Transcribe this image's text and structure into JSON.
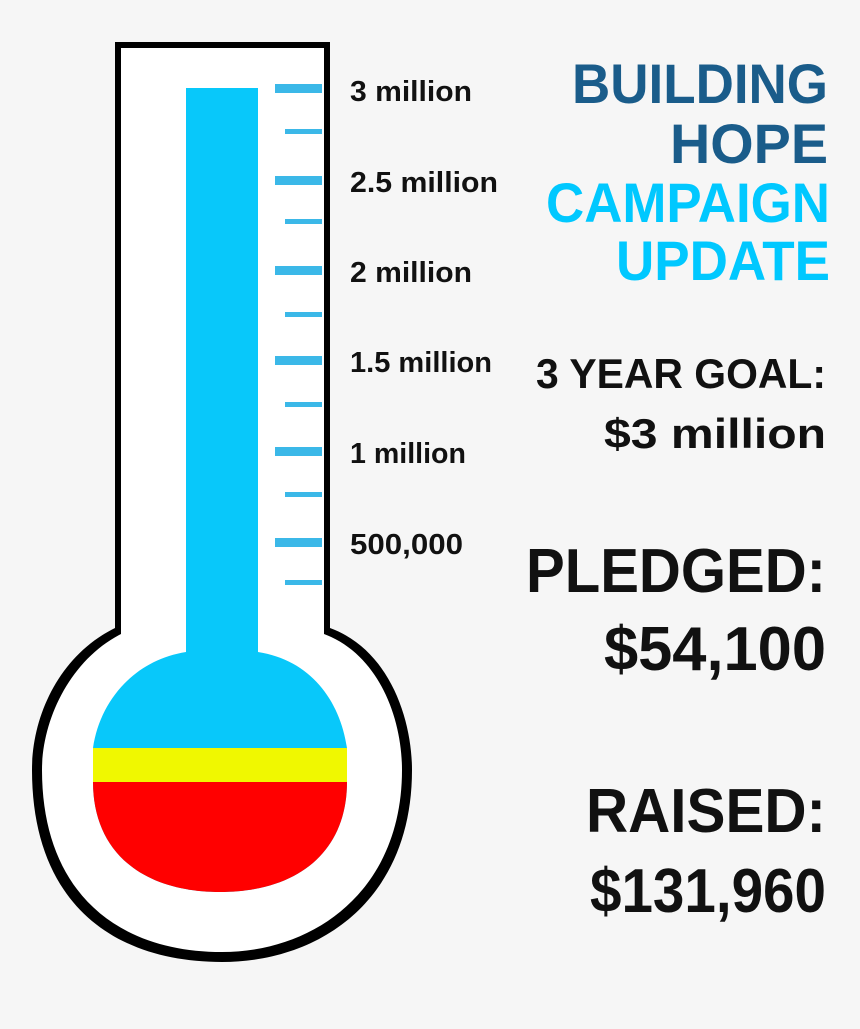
{
  "title": {
    "line1": "BUILDING",
    "line2": "HOPE",
    "line3": "CAMPAIGN",
    "line4": "UPDATE"
  },
  "goal": {
    "label": "3 YEAR GOAL:",
    "value": "$3 million"
  },
  "pledged": {
    "label": "PLEDGED:",
    "value": "$54,100"
  },
  "raised": {
    "label": "RAISED:",
    "value": "$131,960"
  },
  "thermometer": {
    "scale_labels": [
      "3 million",
      "2.5 million",
      "2 million",
      "1.5 million",
      "1 million",
      "500,000"
    ],
    "max": 3000000,
    "raised_amount": 131960,
    "pledged_amount": 54100
  },
  "colors": {
    "title_dark": "#1a5c8a",
    "title_light": "#00c8ff",
    "fluid": "#08c8fa",
    "tick": "#3bb8e8",
    "pledged": "#f0f800",
    "raised": "#ff0000"
  }
}
